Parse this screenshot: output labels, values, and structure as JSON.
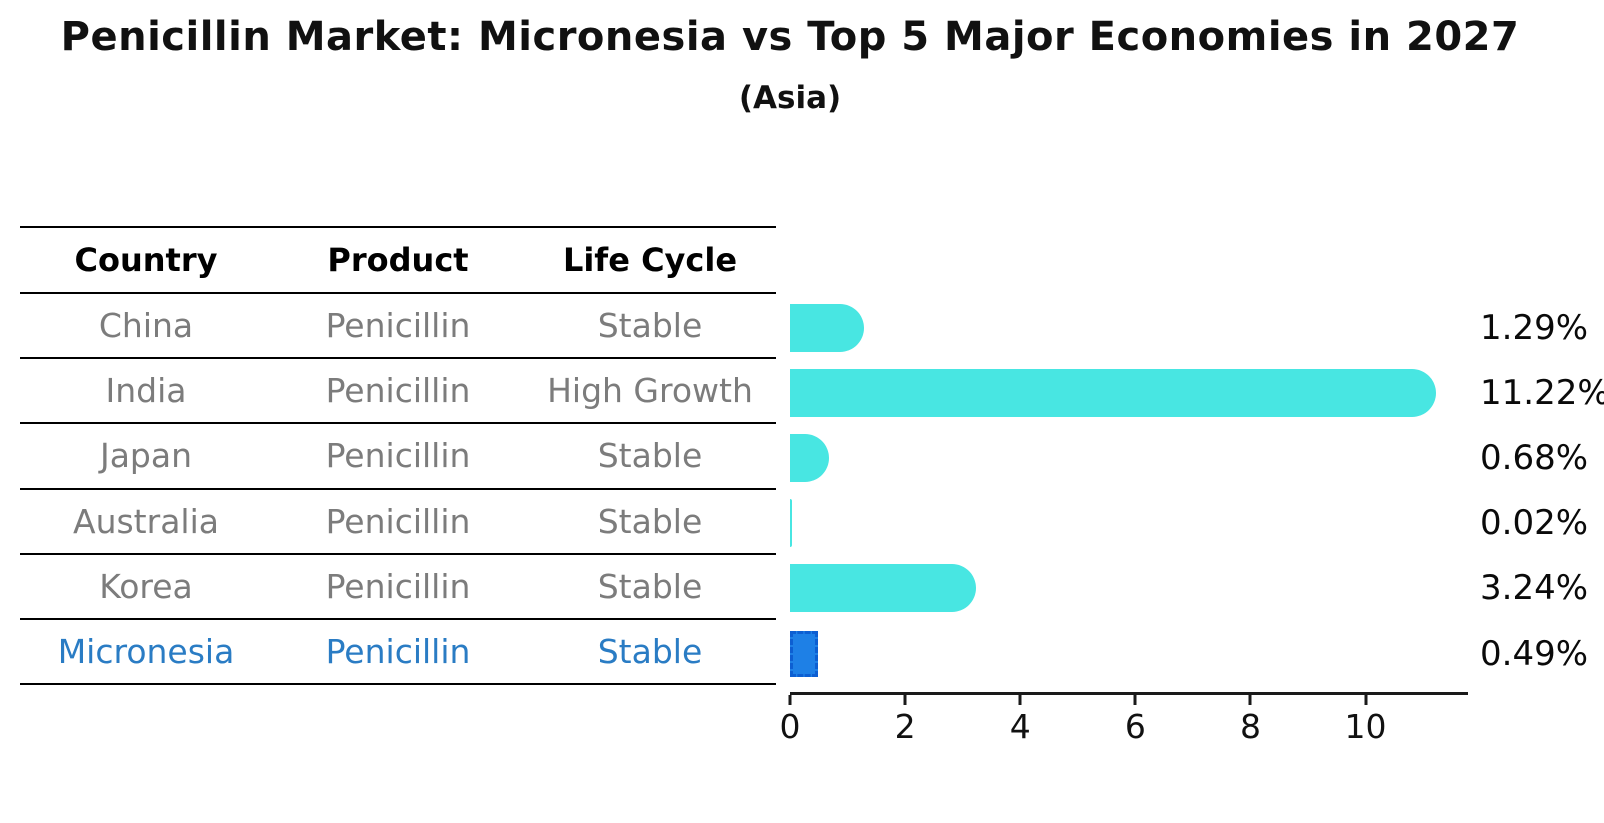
{
  "chart_data": {
    "type": "bar",
    "orientation": "horizontal",
    "title": "Penicillin Market: Micronesia vs Top 5 Major Economies in 2027",
    "subtitle": "(Asia)",
    "categories": [
      "China",
      "India",
      "Japan",
      "Australia",
      "Korea",
      "Micronesia"
    ],
    "values": [
      1.29,
      11.22,
      0.68,
      0.02,
      3.24,
      0.49
    ],
    "value_labels": [
      "1.29%",
      "11.22%",
      "0.68%",
      "0.02%",
      "3.24%",
      "0.49%"
    ],
    "xlabel": "",
    "ylabel": "",
    "xticks": [
      "0",
      "2",
      "4",
      "6",
      "8",
      "10"
    ],
    "xlim": [
      0,
      11.78
    ],
    "grid": false,
    "legend": false,
    "bar_color": "#48E6E2",
    "highlight_index": 5,
    "highlight_bar_color": "#1E80E6",
    "highlight_bar_border": "#0D5FD2"
  },
  "table": {
    "headers": [
      "Country",
      "Product",
      "Life Cycle"
    ],
    "rows": [
      {
        "country": "China",
        "product": "Penicillin",
        "life_cycle": "Stable",
        "highlight": false
      },
      {
        "country": "India",
        "product": "Penicillin",
        "life_cycle": "High Growth",
        "highlight": false
      },
      {
        "country": "Japan",
        "product": "Penicillin",
        "life_cycle": "Stable",
        "highlight": false
      },
      {
        "country": "Australia",
        "product": "Penicillin",
        "life_cycle": "Stable",
        "highlight": false
      },
      {
        "country": "Korea",
        "product": "Penicillin",
        "life_cycle": "Stable",
        "highlight": false
      },
      {
        "country": "Micronesia",
        "product": "Penicillin",
        "life_cycle": "Stable",
        "highlight": true
      }
    ]
  },
  "colors": {
    "row_text": "#7c7c7c",
    "header_text": "#000000",
    "highlight_text": "#2A7CC4",
    "axis": "#1a1a1a"
  }
}
